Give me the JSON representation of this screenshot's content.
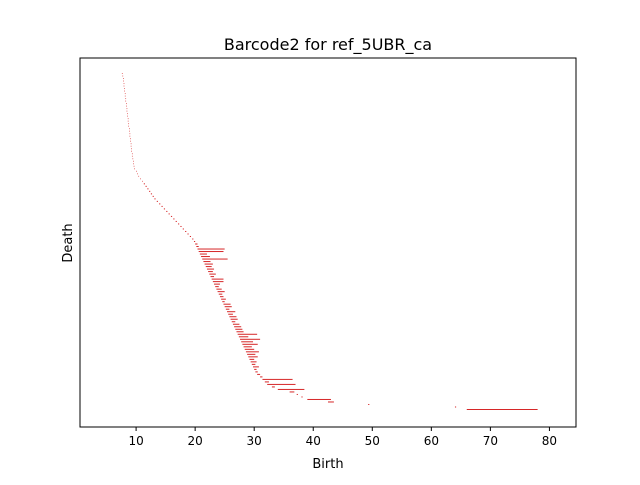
{
  "chart_data": {
    "type": "barcode",
    "title": "Barcode2 for ref_5UBR_ca",
    "xlabel": "Birth",
    "ylabel": "Death",
    "xlim": [
      0.5,
      84.5
    ],
    "xticks": [
      10,
      20,
      30,
      40,
      50,
      60,
      70,
      80
    ],
    "yticks_shown": false,
    "grid": false,
    "legend": "none",
    "bar_color": "#d62728",
    "bars": [
      [
        7.6,
        7.7
      ],
      [
        7.7,
        7.8
      ],
      [
        7.8,
        7.9
      ],
      [
        7.8,
        7.9
      ],
      [
        7.9,
        8.0
      ],
      [
        7.9,
        8.0
      ],
      [
        8.0,
        8.1
      ],
      [
        8.0,
        8.1
      ],
      [
        8.1,
        8.2
      ],
      [
        8.1,
        8.2
      ],
      [
        8.2,
        8.3
      ],
      [
        8.2,
        8.3
      ],
      [
        8.3,
        8.4
      ],
      [
        8.3,
        8.4
      ],
      [
        8.4,
        8.5
      ],
      [
        8.4,
        8.5
      ],
      [
        8.5,
        8.6
      ],
      [
        8.5,
        8.6
      ],
      [
        8.6,
        8.7
      ],
      [
        8.6,
        8.7
      ],
      [
        8.7,
        8.8
      ],
      [
        8.7,
        8.8
      ],
      [
        8.8,
        8.9
      ],
      [
        8.8,
        8.9
      ],
      [
        8.9,
        9.0
      ],
      [
        8.9,
        9.0
      ],
      [
        9.0,
        9.1
      ],
      [
        9.0,
        9.1
      ],
      [
        9.1,
        9.2
      ],
      [
        9.1,
        9.2
      ],
      [
        9.2,
        9.3
      ],
      [
        9.2,
        9.3
      ],
      [
        9.3,
        9.4
      ],
      [
        9.3,
        9.4
      ],
      [
        9.4,
        9.5
      ],
      [
        9.5,
        9.6
      ],
      [
        9.5,
        9.6
      ],
      [
        9.6,
        9.7
      ],
      [
        9.7,
        9.8
      ],
      [
        10.0,
        10.1
      ],
      [
        10.2,
        10.3
      ],
      [
        10.4,
        10.5
      ],
      [
        10.7,
        10.8
      ],
      [
        11.0,
        11.1
      ],
      [
        11.3,
        11.5
      ],
      [
        11.6,
        11.8
      ],
      [
        11.9,
        12.1
      ],
      [
        12.2,
        12.4
      ],
      [
        12.5,
        12.7
      ],
      [
        12.8,
        13.0
      ],
      [
        13.1,
        13.3
      ],
      [
        13.5,
        13.7
      ],
      [
        13.9,
        14.1
      ],
      [
        14.3,
        14.5
      ],
      [
        14.7,
        14.9
      ],
      [
        15.1,
        15.3
      ],
      [
        15.5,
        15.7
      ],
      [
        15.9,
        16.1
      ],
      [
        16.3,
        16.5
      ],
      [
        16.7,
        16.9
      ],
      [
        17.1,
        17.3
      ],
      [
        17.5,
        17.7
      ],
      [
        17.9,
        18.1
      ],
      [
        18.3,
        18.5
      ],
      [
        18.7,
        18.9
      ],
      [
        19.1,
        19.3
      ],
      [
        19.5,
        19.7
      ],
      [
        19.8,
        20.0
      ],
      [
        20.0,
        20.4
      ],
      [
        20.2,
        20.6
      ],
      [
        20.4,
        25.0
      ],
      [
        20.6,
        24.8
      ],
      [
        20.8,
        22.0
      ],
      [
        21.0,
        22.5
      ],
      [
        21.2,
        25.5
      ],
      [
        21.4,
        22.6
      ],
      [
        21.6,
        23.0
      ],
      [
        21.8,
        22.8
      ],
      [
        22.0,
        23.2
      ],
      [
        22.2,
        23.0
      ],
      [
        22.4,
        23.5
      ],
      [
        22.6,
        23.2
      ],
      [
        22.8,
        24.8
      ],
      [
        23.0,
        24.8
      ],
      [
        23.2,
        24.2
      ],
      [
        23.4,
        24.0
      ],
      [
        23.6,
        24.5
      ],
      [
        23.8,
        25.0
      ],
      [
        24.0,
        24.6
      ],
      [
        24.2,
        24.8
      ],
      [
        24.4,
        25.2
      ],
      [
        24.6,
        25.0
      ],
      [
        24.8,
        26.0
      ],
      [
        25.0,
        26.2
      ],
      [
        25.2,
        25.8
      ],
      [
        25.4,
        26.8
      ],
      [
        25.6,
        26.4
      ],
      [
        25.8,
        27.0
      ],
      [
        26.0,
        27.2
      ],
      [
        26.2,
        26.8
      ],
      [
        26.4,
        27.5
      ],
      [
        26.6,
        27.8
      ],
      [
        26.8,
        28.0
      ],
      [
        27.0,
        28.2
      ],
      [
        27.2,
        30.5
      ],
      [
        27.4,
        29.0
      ],
      [
        27.6,
        31.0
      ],
      [
        27.8,
        29.8
      ],
      [
        28.0,
        30.6
      ],
      [
        28.2,
        29.6
      ],
      [
        28.4,
        30.0
      ],
      [
        28.6,
        30.8
      ],
      [
        28.8,
        30.2
      ],
      [
        29.0,
        30.6
      ],
      [
        29.2,
        30.0
      ],
      [
        29.4,
        30.4
      ],
      [
        29.6,
        30.2
      ],
      [
        29.8,
        30.8
      ],
      [
        30.0,
        30.4
      ],
      [
        30.2,
        30.6
      ],
      [
        30.5,
        31.0
      ],
      [
        31.0,
        31.4
      ],
      [
        31.4,
        36.5
      ],
      [
        31.8,
        32.5
      ],
      [
        32.2,
        37.0
      ],
      [
        33.0,
        33.5
      ],
      [
        34.0,
        38.5
      ],
      [
        36.0,
        36.8
      ],
      [
        37.2,
        37.4
      ],
      [
        38.0,
        38.2
      ],
      [
        39.0,
        43.0
      ],
      [
        42.5,
        43.5
      ],
      [
        49.3,
        49.5
      ],
      [
        64.0,
        64.2
      ],
      [
        66.0,
        78.0
      ]
    ]
  }
}
